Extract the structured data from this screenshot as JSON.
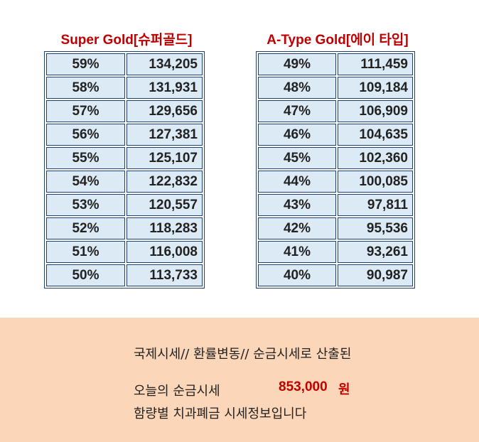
{
  "left_table": {
    "title": "Super Gold[슈퍼골드]",
    "rows": [
      {
        "pct": "59%",
        "value": "134,205"
      },
      {
        "pct": "58%",
        "value": "131,931"
      },
      {
        "pct": "57%",
        "value": "129,656"
      },
      {
        "pct": "56%",
        "value": "127,381"
      },
      {
        "pct": "55%",
        "value": "125,107"
      },
      {
        "pct": "54%",
        "value": "122,832"
      },
      {
        "pct": "53%",
        "value": "120,557"
      },
      {
        "pct": "52%",
        "value": "118,283"
      },
      {
        "pct": "51%",
        "value": "116,008"
      },
      {
        "pct": "50%",
        "value": "113,733"
      }
    ]
  },
  "right_table": {
    "title": "A-Type Gold[에이 타입]",
    "rows": [
      {
        "pct": "49%",
        "value": "111,459"
      },
      {
        "pct": "48%",
        "value": "109,184"
      },
      {
        "pct": "47%",
        "value": "106,909"
      },
      {
        "pct": "46%",
        "value": "104,635"
      },
      {
        "pct": "45%",
        "value": "102,360"
      },
      {
        "pct": "44%",
        "value": "100,085"
      },
      {
        "pct": "43%",
        "value": "97,811"
      },
      {
        "pct": "42%",
        "value": "95,536"
      },
      {
        "pct": "41%",
        "value": "93,261"
      },
      {
        "pct": "40%",
        "value": "90,987"
      }
    ]
  },
  "banner": {
    "line1": "국제시세// 환률변동// 순금시세로 산출된",
    "line2_label": "오늘의 순금시세",
    "price": "853,000",
    "unit": "원",
    "line3": "함량별 치과폐금 시세정보입니다"
  },
  "colors": {
    "title_red": "#c00000",
    "cell_bg": "#dbeaf5",
    "cell_border": "#1f3f6e",
    "banner_bg": "#fcd6b8"
  }
}
